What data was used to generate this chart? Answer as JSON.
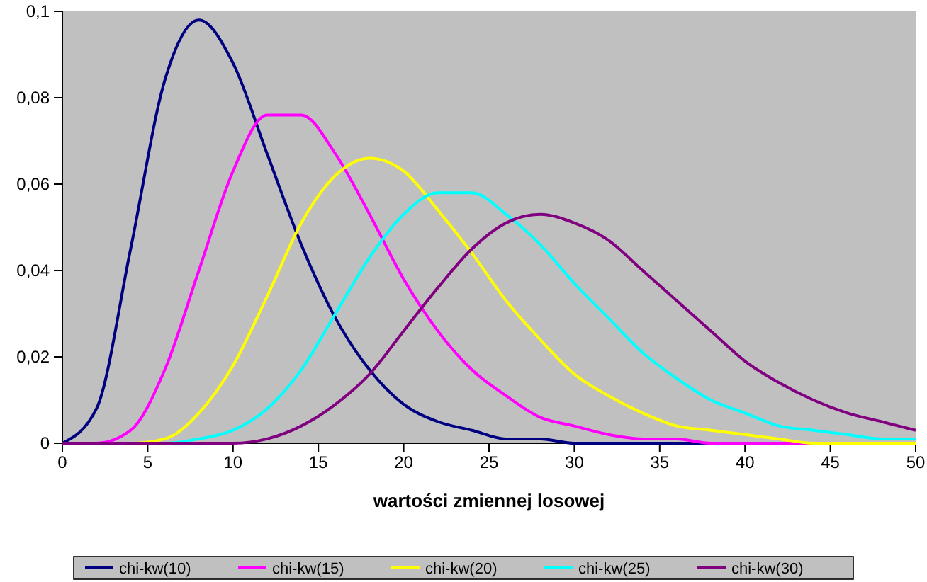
{
  "chart_data": {
    "type": "line",
    "xlabel": "wartości zmiennej losowej",
    "x": [
      0,
      2,
      4,
      6,
      8,
      10,
      12,
      14,
      16,
      18,
      20,
      22,
      24,
      26,
      28,
      30,
      32,
      34,
      36,
      38,
      40,
      42,
      44,
      46,
      48,
      50
    ],
    "series": [
      {
        "name": "chi-kw(10)",
        "color": "#000080",
        "values": [
          0,
          0.008,
          0.045,
          0.084,
          0.098,
          0.088,
          0.067,
          0.046,
          0.029,
          0.017,
          0.009,
          0.005,
          0.003,
          0.001,
          0.001,
          0,
          0,
          0,
          0,
          0,
          0,
          null,
          null,
          null,
          null,
          null
        ]
      },
      {
        "name": "chi-kw(15)",
        "color": "#ff00ff",
        "values": [
          0,
          0,
          0.003,
          0.017,
          0.04,
          0.063,
          0.076,
          0.076,
          0.067,
          0.053,
          0.038,
          0.026,
          0.017,
          0.011,
          0.006,
          0.004,
          0.002,
          0.001,
          0.001,
          0,
          0,
          0,
          0,
          0,
          null,
          null
        ]
      },
      {
        "name": "chi-kw(20)",
        "color": "#ffff00",
        "values": [
          0,
          0,
          0,
          0.001,
          0.007,
          0.018,
          0.034,
          0.051,
          0.062,
          0.066,
          0.063,
          0.054,
          0.044,
          0.033,
          0.024,
          0.016,
          0.011,
          0.007,
          0.004,
          0.003,
          0.002,
          0.001,
          0,
          0,
          0,
          0
        ]
      },
      {
        "name": "chi-kw(25)",
        "color": "#00ffff",
        "values": [
          null,
          null,
          0,
          0,
          0.001,
          0.003,
          0.008,
          0.017,
          0.03,
          0.043,
          0.053,
          0.058,
          0.058,
          0.053,
          0.046,
          0.037,
          0.029,
          0.021,
          0.015,
          0.01,
          0.007,
          0.004,
          0.003,
          0.002,
          0.001,
          0.001
        ]
      },
      {
        "name": "chi-kw(30)",
        "color": "#800080",
        "values": [
          0,
          0,
          0,
          0,
          0,
          0,
          0.001,
          0.004,
          0.009,
          0.016,
          0.026,
          0.036,
          0.045,
          0.051,
          0.053,
          0.051,
          0.047,
          0.04,
          0.033,
          0.026,
          0.019,
          0.014,
          0.01,
          0.007,
          0.005,
          0.003
        ]
      }
    ],
    "xlim": [
      0,
      50
    ],
    "xticks": [
      0,
      5,
      10,
      15,
      20,
      25,
      30,
      35,
      40,
      45,
      50
    ],
    "ylim": [
      0,
      0.1
    ],
    "yticks": [
      0,
      {
        "value": 0.02,
        "label": "0,02"
      },
      {
        "value": 0.04,
        "label": "0,04"
      },
      {
        "value": 0.06,
        "label": "0,06"
      },
      {
        "value": 0.08,
        "label": "0,08"
      },
      {
        "value": 0.1,
        "label": "0,1"
      }
    ],
    "grid": false,
    "legend": "bottom",
    "marker": "none",
    "line_style": "solid"
  }
}
